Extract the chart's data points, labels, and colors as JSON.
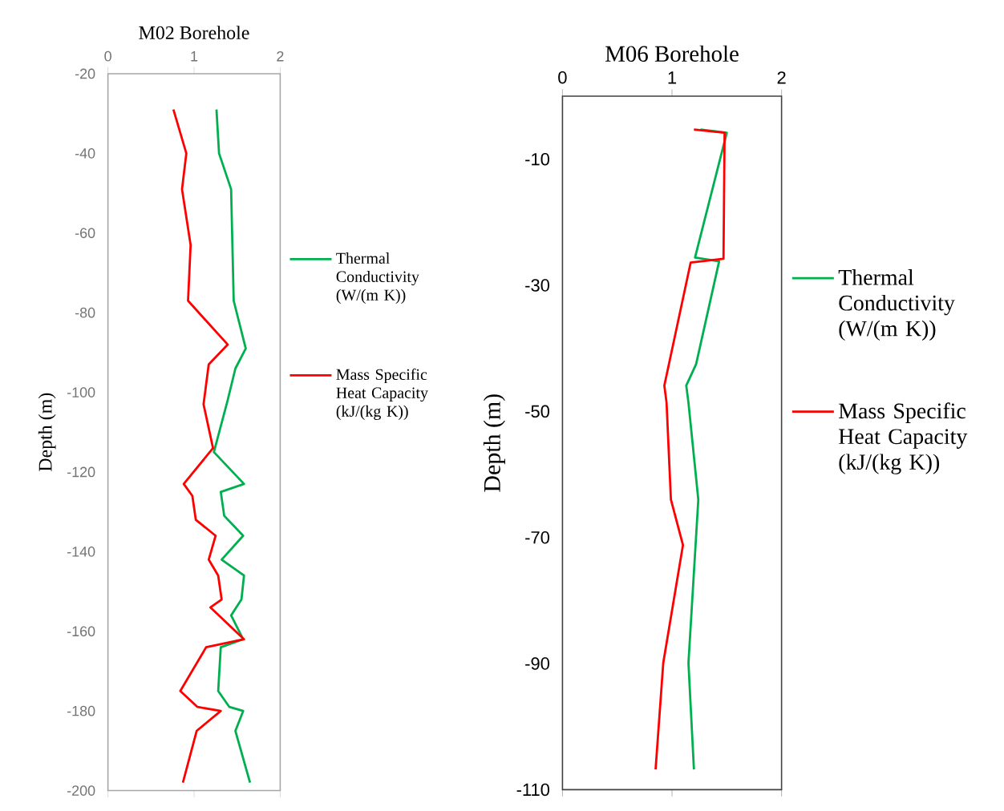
{
  "chart_data": [
    {
      "type": "line",
      "title": "M02 Borehole",
      "ylabel": "Depth (m)",
      "xlim": [
        0,
        2
      ],
      "xticks": [
        0,
        1,
        2
      ],
      "ylim": [
        -200,
        -20
      ],
      "yticks": [
        -20,
        -40,
        -60,
        -80,
        -100,
        -120,
        -140,
        -160,
        -180,
        -200
      ],
      "legend": "right",
      "series": [
        {
          "name": "Thermal Conductivity (W/(m K))",
          "color": "#00b050",
          "x": [
            1.26,
            1.29,
            1.43,
            1.46,
            1.6,
            1.48,
            1.39,
            1.23,
            1.58,
            1.31,
            1.35,
            1.57,
            1.32,
            1.58,
            1.55,
            1.43,
            1.57,
            1.31,
            1.28,
            1.41,
            1.57,
            1.48,
            1.65
          ],
          "values": [
            -29,
            -40,
            -49,
            -77,
            -89,
            -94,
            -102,
            -115,
            -123,
            -125,
            -131,
            -136,
            -142,
            -146,
            -152,
            -156,
            -162,
            -164,
            -175,
            -179,
            -180,
            -185,
            -198
          ]
        },
        {
          "name": "Mass Specific Heat Capacity (kJ/(kg K))",
          "color": "#ff0000",
          "x": [
            0.76,
            0.91,
            0.86,
            0.96,
            0.93,
            1.39,
            1.17,
            1.11,
            1.22,
            0.88,
            0.98,
            1.02,
            1.25,
            1.17,
            1.28,
            1.32,
            1.19,
            1.58,
            1.14,
            0.84,
            1.04,
            1.31,
            1.03,
            0.87
          ],
          "values": [
            -29,
            -40,
            -49,
            -63,
            -77,
            -88,
            -93,
            -103,
            -114,
            -123,
            -126,
            -132,
            -136,
            -142,
            -146,
            -152,
            -154,
            -162,
            -164,
            -175,
            -179,
            -180,
            -185,
            -198
          ]
        }
      ]
    },
    {
      "type": "line",
      "title": "M06 Borehole",
      "ylabel": "Depth (m)",
      "xlim": [
        0,
        2
      ],
      "xticks": [
        0,
        1,
        2
      ],
      "ylim": [
        -110,
        0
      ],
      "yticks": [
        -10,
        -30,
        -50,
        -70,
        -90,
        -110
      ],
      "legend": "right",
      "series": [
        {
          "name": "Thermal Conductivity (W/(m K))",
          "color": "#00b050",
          "x": [
            1.26,
            1.5,
            1.21,
            1.43,
            1.22,
            1.13,
            1.15,
            1.24,
            1.15,
            1.2
          ],
          "values": [
            -5.3,
            -5.8,
            -25.6,
            -26.2,
            -42.5,
            -45.9,
            -48.6,
            -64,
            -89.9,
            -106.8
          ]
        },
        {
          "name": "Mass Specific Heat Capacity (kJ/(kg K))",
          "color": "#ff0000",
          "x": [
            1.2,
            1.48,
            1.47,
            1.17,
            0.93,
            0.95,
            0.99,
            1.1,
            0.92,
            0.85
          ],
          "values": [
            -5.3,
            -5.8,
            -25.8,
            -26.4,
            -45.9,
            -48.6,
            -64,
            -71.2,
            -89.9,
            -106.8
          ]
        }
      ]
    }
  ]
}
